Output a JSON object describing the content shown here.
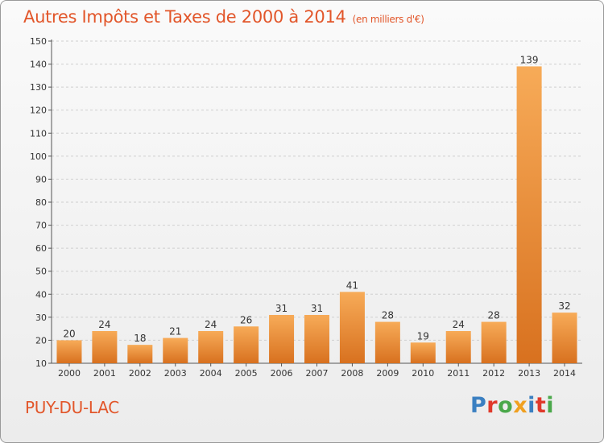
{
  "header": {
    "title": "Autres Impôts et Taxes de 2000 à 2014",
    "subtitle": "(en milliers d'€)"
  },
  "footer": {
    "commune": "PUY-DU-LAC",
    "logo": "Proxiti"
  },
  "logo_colors": [
    "#3a7fc1",
    "#e0392b",
    "#4aa84a",
    "#f0a020",
    "#3a7fc1",
    "#e0392b",
    "#4aa84a"
  ],
  "colors": {
    "title": "#e2562a",
    "bar_light": "#f6a855",
    "bar_dark": "#d9701e",
    "axis": "#555555",
    "grid": "#cfcfcf"
  },
  "chart_data": {
    "type": "bar",
    "categories": [
      "2000",
      "2001",
      "2002",
      "2003",
      "2004",
      "2005",
      "2006",
      "2007",
      "2008",
      "2009",
      "2010",
      "2011",
      "2012",
      "2013",
      "2014"
    ],
    "values": [
      20,
      24,
      18,
      21,
      24,
      26,
      31,
      31,
      41,
      28,
      19,
      24,
      28,
      139,
      32
    ],
    "ylim": [
      10,
      150
    ],
    "yticks": [
      10,
      20,
      30,
      40,
      50,
      60,
      70,
      80,
      90,
      100,
      110,
      120,
      130,
      140,
      150
    ],
    "grid": true,
    "data_labels": true
  }
}
